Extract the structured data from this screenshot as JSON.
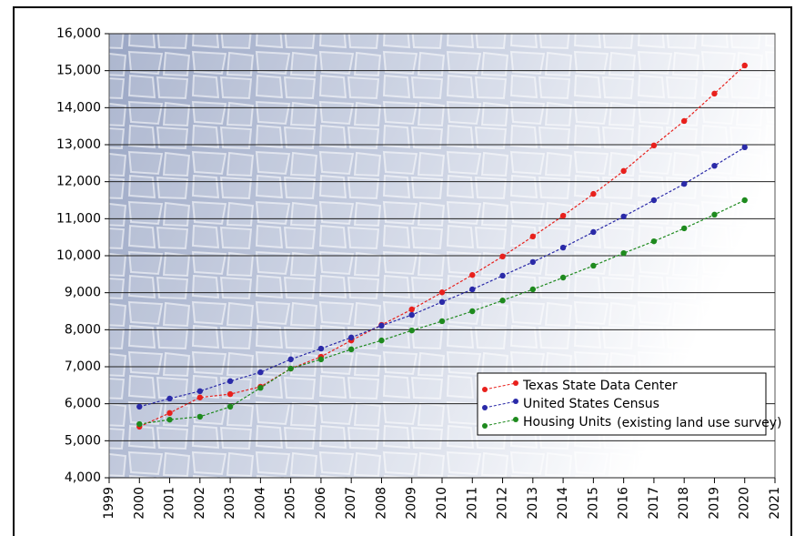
{
  "chart_data": {
    "type": "line",
    "x": [
      2000,
      2001,
      2002,
      2003,
      2004,
      2005,
      2006,
      2007,
      2008,
      2009,
      2010,
      2011,
      2012,
      2013,
      2014,
      2015,
      2016,
      2017,
      2018,
      2019,
      2020
    ],
    "series": [
      {
        "name": "Texas State Data Center",
        "color": "#e8201c",
        "values": [
          5380,
          5750,
          6170,
          6260,
          6460,
          6950,
          7270,
          7710,
          8130,
          8550,
          9010,
          9480,
          9980,
          10520,
          11080,
          11670,
          12290,
          12980,
          13640,
          14380,
          15140
        ]
      },
      {
        "name": "United States Census",
        "color": "#2a2aa8",
        "values": [
          5920,
          6140,
          6340,
          6610,
          6850,
          7200,
          7490,
          7790,
          8110,
          8400,
          8750,
          9090,
          9460,
          9830,
          10220,
          10640,
          11060,
          11500,
          11940,
          12430,
          12930
        ]
      },
      {
        "name": "Housing Units",
        "legend_note": "(existing land use survey)",
        "color": "#1e8a1e",
        "values": [
          5450,
          5570,
          5650,
          5920,
          6430,
          6950,
          7200,
          7470,
          7710,
          7980,
          8230,
          8500,
          8790,
          9090,
          9410,
          9730,
          10070,
          10390,
          10740,
          11110,
          11500
        ]
      }
    ],
    "xlim": [
      1999,
      2021
    ],
    "xticks": [
      1999,
      2000,
      2001,
      2002,
      2003,
      2004,
      2005,
      2006,
      2007,
      2008,
      2009,
      2010,
      2011,
      2012,
      2013,
      2014,
      2015,
      2016,
      2017,
      2018,
      2019,
      2020,
      2021
    ],
    "ylim": [
      4000,
      16000
    ],
    "yticks": [
      {
        "value": 4000,
        "label": "4,000"
      },
      {
        "value": 5000,
        "label": "5,000"
      },
      {
        "value": 6000,
        "label": "6,000"
      },
      {
        "value": 7000,
        "label": "7,000"
      },
      {
        "value": 8000,
        "label": "8,000"
      },
      {
        "value": 9000,
        "label": "9,000"
      },
      {
        "value": 10000,
        "label": "10,000"
      },
      {
        "value": 11000,
        "label": "11,000"
      },
      {
        "value": 12000,
        "label": "12,000"
      },
      {
        "value": 13000,
        "label": "13,000"
      },
      {
        "value": 14000,
        "label": "14,000"
      },
      {
        "value": 15000,
        "label": "15,000"
      },
      {
        "value": 16000,
        "label": "16,000"
      }
    ],
    "grid": true,
    "legend": "lower right"
  }
}
